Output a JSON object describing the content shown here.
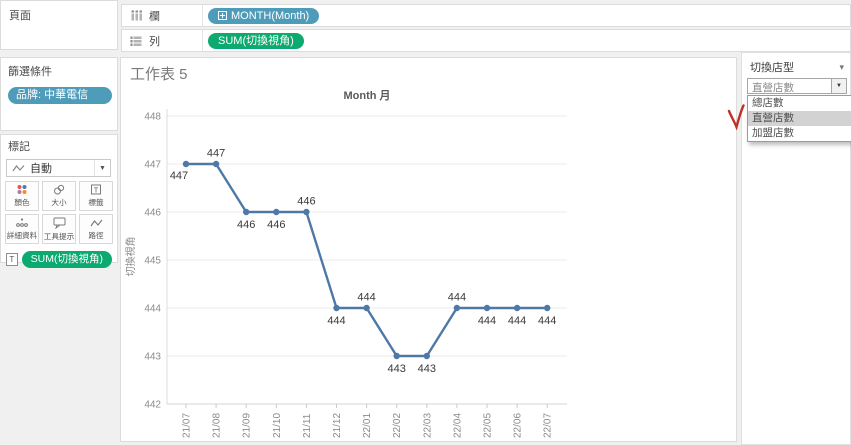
{
  "pages": {
    "title": "頁面"
  },
  "shelves": {
    "columns": {
      "label": "欄",
      "pill": "MONTH(Month)"
    },
    "rows": {
      "label": "列",
      "pill": "SUM(切換視角)"
    }
  },
  "filters": {
    "title": "篩選條件",
    "pill": "品牌: 中華電信"
  },
  "marks": {
    "title": "標記",
    "type_selector": "自動",
    "buttons": [
      {
        "label": "顏色"
      },
      {
        "label": "大小"
      },
      {
        "label": "標籤"
      },
      {
        "label": "詳細資料"
      },
      {
        "label": "工具提示"
      },
      {
        "label": "路徑"
      }
    ],
    "text_pill": {
      "prefix": "T",
      "label": "SUM(切換視角)"
    }
  },
  "sheet_title": "工作表 5",
  "parameter_panel": {
    "title": "切換店型",
    "combobox_value": "直營店數",
    "options": [
      "總店數",
      "直營店數",
      "加盟店數"
    ],
    "highlighted_option": "直營店數"
  },
  "chart_data": {
    "type": "line",
    "title": "Month 月",
    "xlabel": "",
    "ylabel": "切換視角",
    "categories": [
      "21/07",
      "21/08",
      "21/09",
      "21/10",
      "21/11",
      "21/12",
      "22/01",
      "22/02",
      "22/03",
      "22/04",
      "22/05",
      "22/06",
      "22/07"
    ],
    "values": [
      447,
      447,
      446,
      446,
      446,
      444,
      444,
      443,
      443,
      444,
      444,
      444,
      444
    ],
    "data_label_positions": [
      "below-left",
      "above",
      "below",
      "below",
      "above",
      "below",
      "above",
      "below",
      "below",
      "above",
      "below",
      "below",
      "below"
    ],
    "yticks": [
      442,
      443,
      444,
      445,
      446,
      447,
      448
    ],
    "ylim": [
      442,
      448
    ],
    "grid": true,
    "legend": "none",
    "line_color": "#4e79a7",
    "marker": "circle"
  },
  "colors": {
    "dimension_pill": "#4f9cba",
    "measure_pill": "#0caa70",
    "line": "#4e79a7",
    "annotation_red": "#bf3127"
  }
}
